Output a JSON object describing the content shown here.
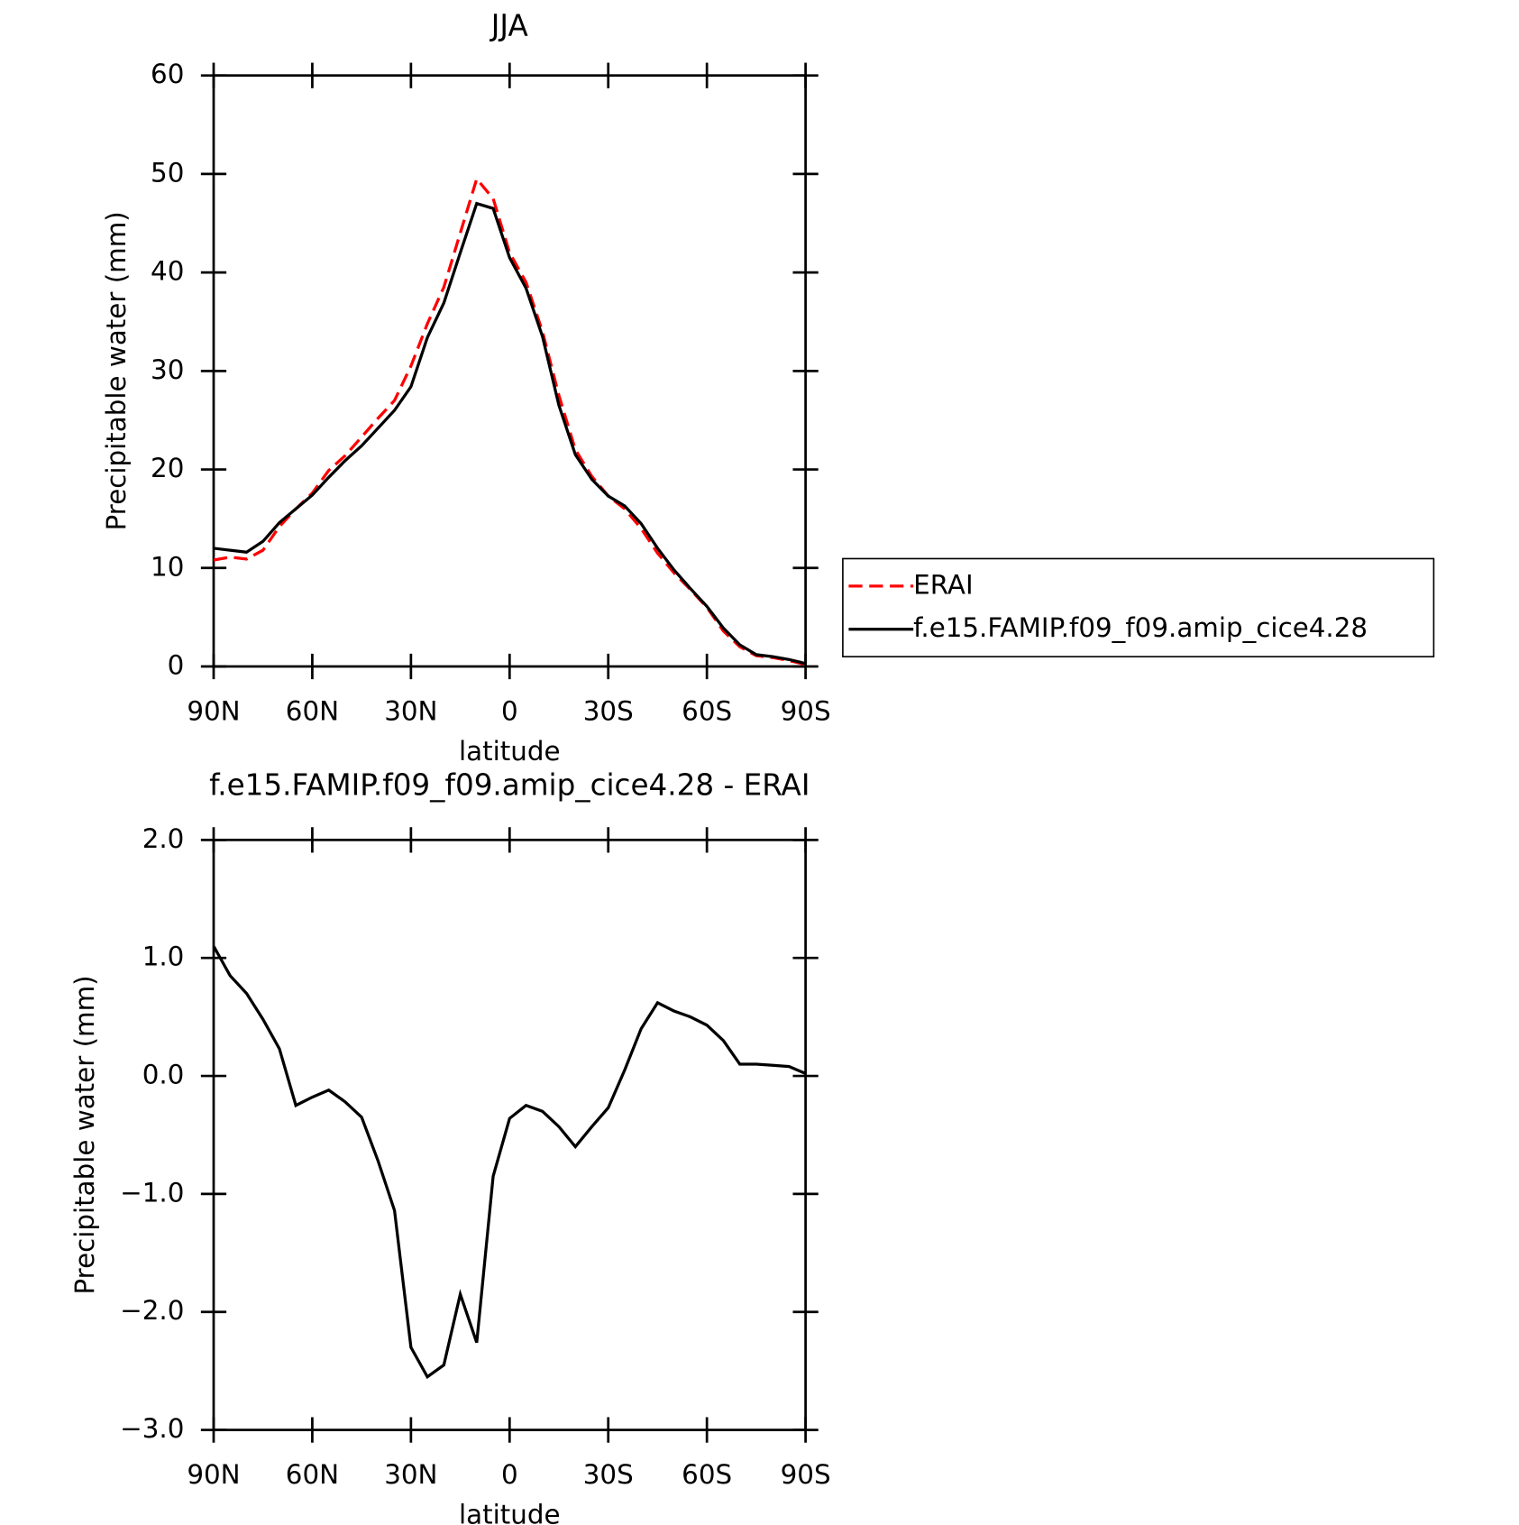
{
  "chart_data": [
    {
      "type": "line",
      "title": "JJA",
      "xlabel": "latitude",
      "ylabel": "Precipitable water (mm)",
      "x": [
        90,
        85,
        80,
        75,
        70,
        65,
        60,
        55,
        50,
        45,
        40,
        35,
        30,
        25,
        20,
        15,
        10,
        5,
        0,
        -5,
        -10,
        -15,
        -20,
        -25,
        -30,
        -35,
        -40,
        -45,
        -50,
        -55,
        -60,
        -65,
        -70,
        -75,
        -80,
        -85,
        -90
      ],
      "series": [
        {
          "name": "ERAI",
          "color": "#ff0000",
          "style": "dashed",
          "values": [
            10.8,
            11.1,
            10.9,
            11.8,
            14.2,
            16,
            17.6,
            19.9,
            21.4,
            23.3,
            25.2,
            27,
            30.5,
            34.8,
            38.5,
            44,
            49.5,
            47.5,
            42,
            39,
            34,
            27.5,
            22,
            19.3,
            17.3,
            16,
            14,
            11.5,
            9.5,
            7.8,
            6,
            3.6,
            2,
            1.1,
            0.9,
            0.6,
            0.2
          ]
        },
        {
          "name": "f.e15.FAMIP.f09_f09.amip_cice4.28",
          "color": "#000000",
          "style": "solid",
          "values": [
            12,
            11.8,
            11.6,
            12.7,
            14.6,
            16,
            17.4,
            19.2,
            20.9,
            22.4,
            24.2,
            26,
            28.4,
            33.4,
            36.9,
            42,
            47,
            46.5,
            41.5,
            38.4,
            33.5,
            26.5,
            21.5,
            19,
            17.3,
            16.3,
            14.5,
            12,
            9.8,
            7.9,
            6.1,
            3.9,
            2.2,
            1.2,
            1,
            0.7,
            0.3
          ]
        }
      ],
      "xlim": [
        90,
        -90
      ],
      "xticks": [
        {
          "value": 90,
          "label": "90N"
        },
        {
          "value": 60,
          "label": "60N"
        },
        {
          "value": 30,
          "label": "30N"
        },
        0,
        {
          "value": -30,
          "label": "30S"
        },
        {
          "value": -60,
          "label": "60S"
        },
        {
          "value": -90,
          "label": "90S"
        }
      ],
      "ylim": [
        0,
        60
      ],
      "yticks": [
        0,
        10,
        20,
        30,
        40,
        50,
        60
      ],
      "legend": "right"
    },
    {
      "type": "line",
      "title": "f.e15.FAMIP.f09_f09.amip_cice4.28 - ERAI",
      "xlabel": "latitude",
      "ylabel": "Precipitable water (mm)",
      "x": [
        90,
        85,
        80,
        75,
        70,
        65,
        60,
        55,
        50,
        45,
        40,
        35,
        30,
        25,
        20,
        15,
        10,
        5,
        0,
        -5,
        -10,
        -15,
        -20,
        -25,
        -30,
        -35,
        -40,
        -45,
        -50,
        -55,
        -60,
        -65,
        -70,
        -75,
        -80,
        -85,
        -90
      ],
      "series": [
        {
          "name": "f.e15.FAMIP.f09_f09.amip_cice4.28 - ERAI",
          "color": "#000000",
          "style": "solid",
          "values": [
            1.1,
            0.85,
            0.7,
            0.48,
            0.23,
            -0.25,
            -0.18,
            -0.12,
            -0.22,
            -0.35,
            -0.72,
            -1.14,
            -2.3,
            -2.55,
            -2.45,
            -1.85,
            -2.26,
            -0.85,
            -0.36,
            -0.25,
            -0.3,
            -0.43,
            -0.6,
            -0.43,
            -0.27,
            0.05,
            0.4,
            0.62,
            0.55,
            0.5,
            0.43,
            0.3,
            0.1,
            0.1,
            0.09,
            0.08,
            0.02
          ]
        }
      ],
      "xlim": [
        90,
        -90
      ],
      "xticks": [
        {
          "value": 90,
          "label": "90N"
        },
        {
          "value": 60,
          "label": "60N"
        },
        {
          "value": 30,
          "label": "30N"
        },
        0,
        {
          "value": -30,
          "label": "30S"
        },
        {
          "value": -60,
          "label": "60S"
        },
        {
          "value": -90,
          "label": "90S"
        }
      ],
      "ylim": [
        -3,
        2
      ],
      "yticks": [
        {
          "value": -3,
          "label": "−3.0"
        },
        {
          "value": -2,
          "label": "−2.0"
        },
        {
          "value": -1,
          "label": "−1.0"
        },
        {
          "value": 0,
          "label": "0.0"
        },
        {
          "value": 1,
          "label": "1.0"
        },
        {
          "value": 2,
          "label": "2.0"
        }
      ]
    }
  ]
}
